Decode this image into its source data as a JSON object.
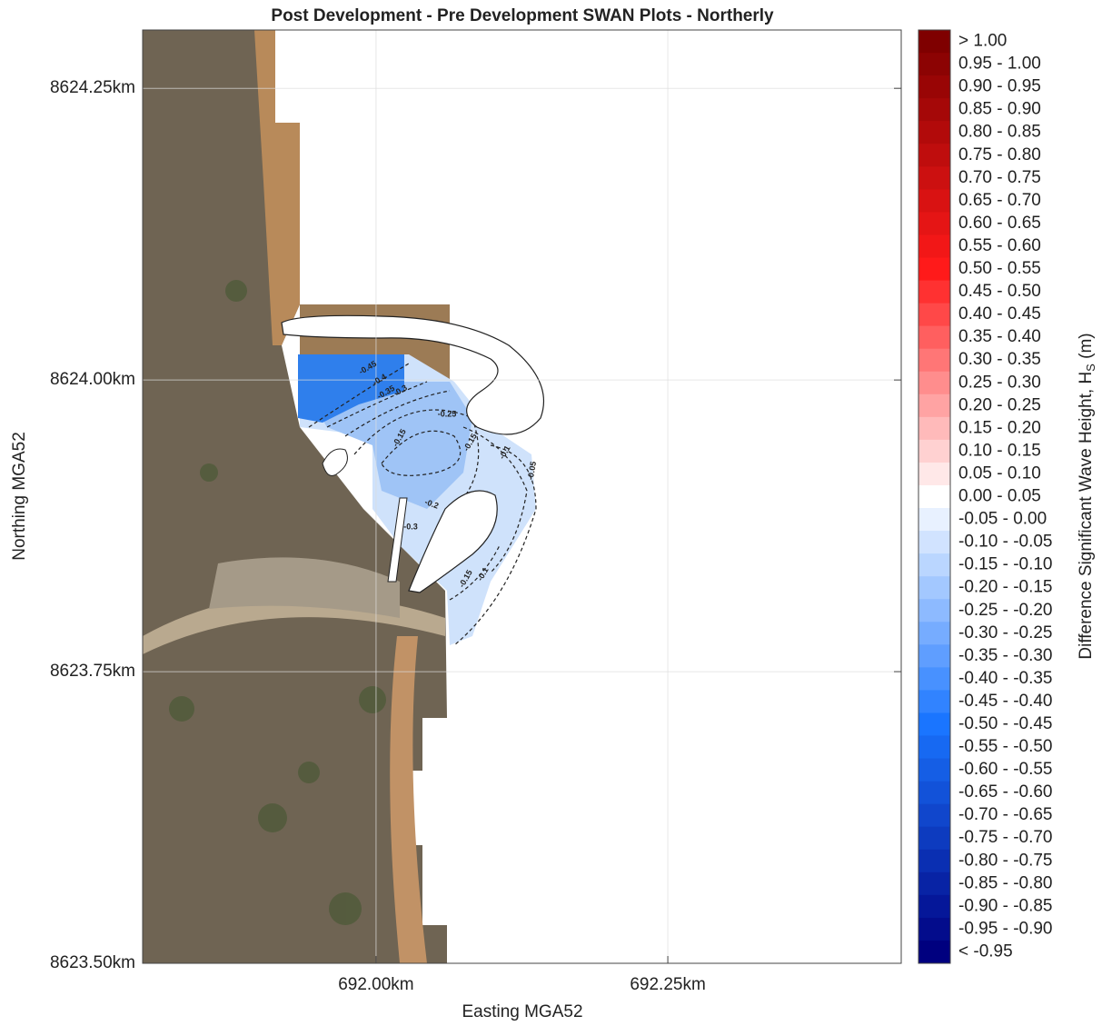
{
  "plot": {
    "title": "Post Development - Pre Development SWAN Plots - Northerly",
    "xlabel": "Easting MGA52",
    "ylabel": "Northing MGA52",
    "xlim": [
      691.8,
      692.45
    ],
    "ylim": [
      8623.5,
      8624.3
    ],
    "xticks": [
      {
        "value": 692.0,
        "label": "692.00km"
      },
      {
        "value": 692.25,
        "label": "692.25km"
      }
    ],
    "yticks": [
      {
        "value": 8623.5,
        "label": "8623.50km"
      },
      {
        "value": 8623.75,
        "label": "8623.75km"
      },
      {
        "value": 8624.0,
        "label": "8624.00km"
      },
      {
        "value": 8624.25,
        "label": "8624.25km"
      }
    ],
    "grid": true
  },
  "colorbar": {
    "label": "Difference Significant Wave Height, H",
    "label_subscript": "S",
    "label_unit": " (m)",
    "stops": [
      "#7f0000",
      "#ff1a1a",
      "#ffffff",
      "#1a75ff",
      "#00007f"
    ],
    "classes": [
      "> 1.00",
      "0.95 - 1.00",
      "0.90 - 0.95",
      "0.85 - 0.90",
      "0.80 - 0.85",
      "0.75 - 0.80",
      "0.70 - 0.75",
      "0.65 - 0.70",
      "0.60 - 0.65",
      "0.55 - 0.60",
      "0.50 - 0.55",
      "0.45 - 0.50",
      "0.40 - 0.45",
      "0.35 - 0.40",
      "0.30 - 0.35",
      "0.25 - 0.30",
      "0.20 - 0.25",
      "0.15 - 0.20",
      "0.10 - 0.15",
      "0.05 - 0.10",
      "0.00 - 0.05",
      "-0.05 - 0.00",
      "-0.10 - -0.05",
      "-0.15 - -0.10",
      "-0.20 - -0.15",
      "-0.25 - -0.20",
      "-0.30 - -0.25",
      "-0.35 - -0.30",
      "-0.40 - -0.35",
      "-0.45 - -0.40",
      "-0.50 - -0.45",
      "-0.55 - -0.50",
      "-0.60 - -0.55",
      "-0.65 - -0.60",
      "-0.70 - -0.65",
      "-0.75 - -0.70",
      "-0.80 - -0.75",
      "-0.85 - -0.80",
      "-0.90 - -0.85",
      "-0.95 - -0.90",
      "< -0.95"
    ]
  },
  "contour_labels": [
    "-0.45",
    "-0.4",
    "-0.35",
    "-0.3",
    "-0.25",
    "-0.15",
    "-0.15",
    "-0.1",
    "-0.05",
    "-0.2",
    "-0.3",
    "-0.15",
    "-0.1"
  ]
}
